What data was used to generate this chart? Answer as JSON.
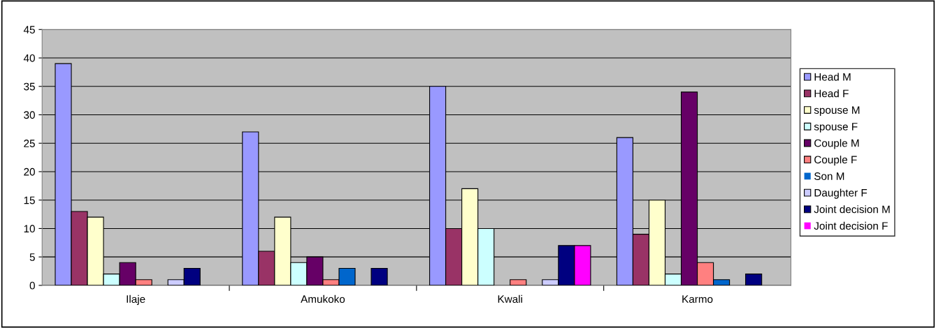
{
  "chart_data": {
    "type": "bar",
    "categories": [
      "Ilaje",
      "Amukoko",
      "Kwali",
      "Karmo"
    ],
    "series": [
      {
        "name": "Head M",
        "color": "#9999ff",
        "values": [
          39,
          27,
          35,
          26
        ]
      },
      {
        "name": "Head F",
        "color": "#993366",
        "values": [
          13,
          6,
          10,
          9
        ]
      },
      {
        "name": "spouse M",
        "color": "#ffffcc",
        "values": [
          12,
          12,
          17,
          15
        ]
      },
      {
        "name": "spouse F",
        "color": "#ccffff",
        "values": [
          2,
          4,
          10,
          2
        ]
      },
      {
        "name": "Couple M",
        "color": "#660066",
        "values": [
          4,
          5,
          0,
          34
        ]
      },
      {
        "name": "Couple F",
        "color": "#ff8080",
        "values": [
          1,
          1,
          1,
          4
        ]
      },
      {
        "name": "Son M",
        "color": "#0066cc",
        "values": [
          0,
          3,
          0,
          1
        ]
      },
      {
        "name": "Daughter F",
        "color": "#ccccff",
        "values": [
          1,
          0,
          1,
          0
        ]
      },
      {
        "name": "Joint decision M",
        "color": "#000080",
        "values": [
          3,
          3,
          7,
          2
        ]
      },
      {
        "name": "Joint decision F",
        "color": "#ff00ff",
        "values": [
          0,
          0,
          7,
          0
        ]
      }
    ],
    "ylim": [
      0,
      45
    ],
    "yticks": [
      0,
      5,
      10,
      15,
      20,
      25,
      30,
      35,
      40,
      45
    ],
    "grid": "y",
    "legend": "right"
  }
}
